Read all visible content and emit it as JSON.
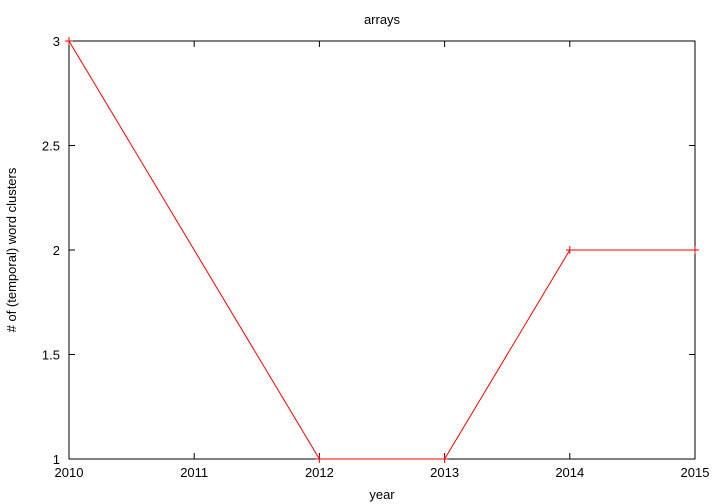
{
  "chart_data": {
    "type": "line",
    "title": "arrays",
    "xlabel": "year",
    "ylabel": "# of (temporal) word clusters",
    "x": [
      2010,
      2011,
      2012,
      2013,
      2014,
      2015
    ],
    "xticks": [
      "2010",
      "2011",
      "2012",
      "2013",
      "2014",
      "2015"
    ],
    "yticks": [
      "1",
      "1.5",
      "2",
      "2.5",
      "3"
    ],
    "xlim": [
      2010,
      2015
    ],
    "ylim": [
      1,
      3
    ],
    "grid": false,
    "series": [
      {
        "x": [
          2010,
          2012,
          2013,
          2014,
          2015
        ],
        "values": [
          3,
          1,
          1,
          2,
          2
        ],
        "color": "#ff0000",
        "marker": "plus"
      }
    ]
  }
}
